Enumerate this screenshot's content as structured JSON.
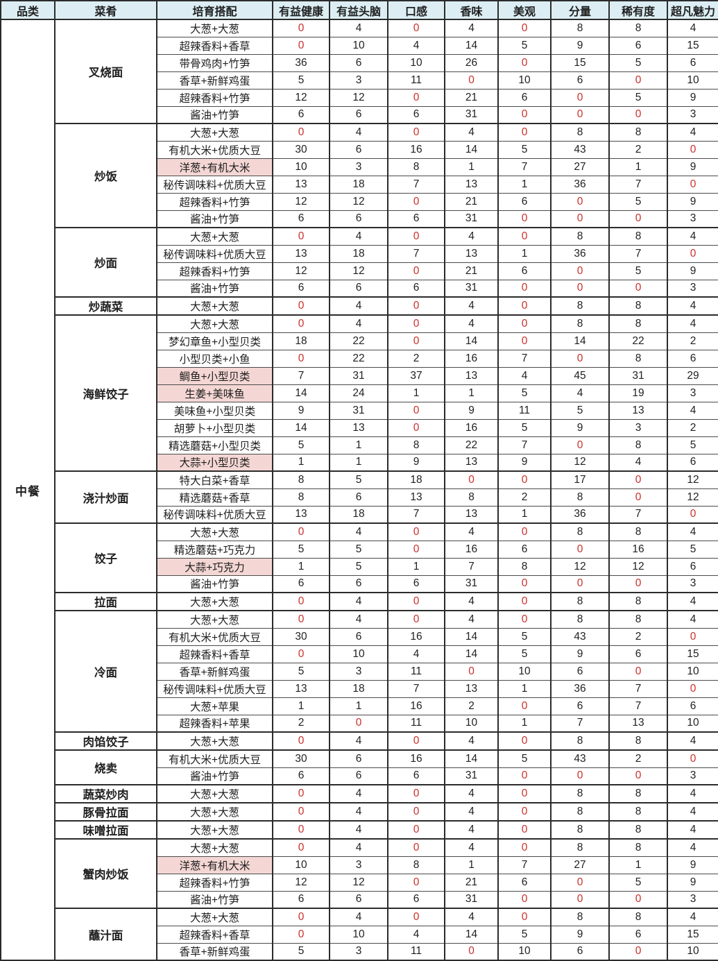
{
  "colors": {
    "header_bg": "#dceef4",
    "highlight_bg": "#f4d7d4",
    "zero_value_color": "#c9302c"
  },
  "table": {
    "columns": [
      "品类",
      "菜肴",
      "培育搭配",
      "有益健康",
      "有益头脑",
      "口感",
      "香味",
      "美观",
      "分量",
      "稀有度",
      "超凡魅力"
    ],
    "category": "中餐",
    "dishes": [
      {
        "name": "叉烧面",
        "rows": [
          {
            "pair": "大葱+大葱",
            "highlight": false,
            "values": [
              0,
              4,
              0,
              4,
              0,
              8,
              8,
              4
            ]
          },
          {
            "pair": "超辣香料+香草",
            "highlight": false,
            "values": [
              0,
              10,
              4,
              14,
              5,
              9,
              6,
              15
            ]
          },
          {
            "pair": "带骨鸡肉+竹笋",
            "highlight": false,
            "values": [
              36,
              6,
              10,
              26,
              0,
              15,
              5,
              6
            ]
          },
          {
            "pair": "香草+新鲜鸡蛋",
            "highlight": false,
            "values": [
              5,
              3,
              11,
              0,
              10,
              6,
              0,
              10
            ]
          },
          {
            "pair": "超辣香料+竹笋",
            "highlight": false,
            "values": [
              12,
              12,
              0,
              21,
              6,
              0,
              5,
              9
            ]
          },
          {
            "pair": "酱油+竹笋",
            "highlight": false,
            "values": [
              6,
              6,
              6,
              31,
              0,
              0,
              0,
              3
            ]
          }
        ]
      },
      {
        "name": "炒饭",
        "rows": [
          {
            "pair": "大葱+大葱",
            "highlight": false,
            "values": [
              0,
              4,
              0,
              4,
              0,
              8,
              8,
              4
            ]
          },
          {
            "pair": "有机大米+优质大豆",
            "highlight": false,
            "values": [
              30,
              6,
              16,
              14,
              5,
              43,
              2,
              0
            ]
          },
          {
            "pair": "洋葱+有机大米",
            "highlight": true,
            "values": [
              10,
              3,
              8,
              1,
              7,
              27,
              1,
              9
            ]
          },
          {
            "pair": "秘传调味料+优质大豆",
            "highlight": false,
            "values": [
              13,
              18,
              7,
              13,
              1,
              36,
              7,
              0
            ]
          },
          {
            "pair": "超辣香料+竹笋",
            "highlight": false,
            "values": [
              12,
              12,
              0,
              21,
              6,
              0,
              5,
              9
            ]
          },
          {
            "pair": "酱油+竹笋",
            "highlight": false,
            "values": [
              6,
              6,
              6,
              31,
              0,
              0,
              0,
              3
            ]
          }
        ]
      },
      {
        "name": "炒面",
        "rows": [
          {
            "pair": "大葱+大葱",
            "highlight": false,
            "values": [
              0,
              4,
              0,
              4,
              0,
              8,
              8,
              4
            ]
          },
          {
            "pair": "秘传调味料+优质大豆",
            "highlight": false,
            "values": [
              13,
              18,
              7,
              13,
              1,
              36,
              7,
              0
            ]
          },
          {
            "pair": "超辣香料+竹笋",
            "highlight": false,
            "values": [
              12,
              12,
              0,
              21,
              6,
              0,
              5,
              9
            ]
          },
          {
            "pair": "酱油+竹笋",
            "highlight": false,
            "values": [
              6,
              6,
              6,
              31,
              0,
              0,
              0,
              3
            ]
          }
        ]
      },
      {
        "name": "炒蔬菜",
        "rows": [
          {
            "pair": "大葱+大葱",
            "highlight": false,
            "values": [
              0,
              4,
              0,
              4,
              0,
              8,
              8,
              4
            ]
          }
        ]
      },
      {
        "name": "海鲜饺子",
        "rows": [
          {
            "pair": "大葱+大葱",
            "highlight": false,
            "values": [
              0,
              4,
              0,
              4,
              0,
              8,
              8,
              4
            ]
          },
          {
            "pair": "梦幻章鱼+小型贝类",
            "highlight": false,
            "values": [
              18,
              22,
              0,
              14,
              0,
              14,
              22,
              2
            ]
          },
          {
            "pair": "小型贝类+小鱼",
            "highlight": false,
            "values": [
              0,
              22,
              2,
              16,
              7,
              0,
              8,
              6
            ]
          },
          {
            "pair": "鲷鱼+小型贝类",
            "highlight": true,
            "values": [
              7,
              31,
              37,
              13,
              4,
              45,
              31,
              29
            ]
          },
          {
            "pair": "生姜+美味鱼",
            "highlight": true,
            "values": [
              14,
              24,
              1,
              1,
              5,
              4,
              19,
              3
            ]
          },
          {
            "pair": "美味鱼+小型贝类",
            "highlight": false,
            "values": [
              9,
              31,
              0,
              9,
              11,
              5,
              13,
              4
            ]
          },
          {
            "pair": "胡萝卜+小型贝类",
            "highlight": false,
            "values": [
              14,
              13,
              0,
              16,
              5,
              9,
              3,
              2
            ]
          },
          {
            "pair": "精选蘑菇+小型贝类",
            "highlight": false,
            "values": [
              5,
              1,
              8,
              22,
              7,
              0,
              8,
              5
            ]
          },
          {
            "pair": "大蒜+小型贝类",
            "highlight": true,
            "values": [
              1,
              1,
              9,
              13,
              9,
              12,
              4,
              6
            ]
          }
        ]
      },
      {
        "name": "浇汁炒面",
        "rows": [
          {
            "pair": "特大白菜+香草",
            "highlight": false,
            "values": [
              8,
              5,
              18,
              0,
              0,
              17,
              0,
              12
            ]
          },
          {
            "pair": "精选蘑菇+香草",
            "highlight": false,
            "values": [
              8,
              6,
              13,
              8,
              2,
              8,
              0,
              12
            ]
          },
          {
            "pair": "秘传调味料+优质大豆",
            "highlight": false,
            "values": [
              13,
              18,
              7,
              13,
              1,
              36,
              7,
              0
            ]
          }
        ]
      },
      {
        "name": "饺子",
        "rows": [
          {
            "pair": "大葱+大葱",
            "highlight": false,
            "values": [
              0,
              4,
              0,
              4,
              0,
              8,
              8,
              4
            ]
          },
          {
            "pair": "精选蘑菇+巧克力",
            "highlight": false,
            "values": [
              5,
              5,
              0,
              16,
              6,
              0,
              16,
              5
            ]
          },
          {
            "pair": "大蒜+巧克力",
            "highlight": true,
            "values": [
              1,
              5,
              1,
              7,
              8,
              12,
              12,
              6
            ]
          },
          {
            "pair": "酱油+竹笋",
            "highlight": false,
            "values": [
              6,
              6,
              6,
              31,
              0,
              0,
              0,
              3
            ]
          }
        ]
      },
      {
        "name": "拉面",
        "rows": [
          {
            "pair": "大葱+大葱",
            "highlight": false,
            "values": [
              0,
              4,
              0,
              4,
              0,
              8,
              8,
              4
            ]
          }
        ]
      },
      {
        "name": "冷面",
        "rows": [
          {
            "pair": "大葱+大葱",
            "highlight": false,
            "values": [
              0,
              4,
              0,
              4,
              0,
              8,
              8,
              4
            ]
          },
          {
            "pair": "有机大米+优质大豆",
            "highlight": false,
            "values": [
              30,
              6,
              16,
              14,
              5,
              43,
              2,
              0
            ]
          },
          {
            "pair": "超辣香料+香草",
            "highlight": false,
            "values": [
              0,
              10,
              4,
              14,
              5,
              9,
              6,
              15
            ]
          },
          {
            "pair": "香草+新鲜鸡蛋",
            "highlight": false,
            "values": [
              5,
              3,
              11,
              0,
              10,
              6,
              0,
              10
            ]
          },
          {
            "pair": "秘传调味料+优质大豆",
            "highlight": false,
            "values": [
              13,
              18,
              7,
              13,
              1,
              36,
              7,
              0
            ]
          },
          {
            "pair": "大葱+苹果",
            "highlight": false,
            "values": [
              1,
              1,
              16,
              2,
              0,
              6,
              7,
              6
            ]
          },
          {
            "pair": "超辣香料+苹果",
            "highlight": false,
            "values": [
              2,
              0,
              11,
              10,
              1,
              7,
              13,
              10
            ]
          }
        ]
      },
      {
        "name": "肉馅饺子",
        "rows": [
          {
            "pair": "大葱+大葱",
            "highlight": false,
            "values": [
              0,
              4,
              0,
              4,
              0,
              8,
              8,
              4
            ]
          }
        ]
      },
      {
        "name": "烧卖",
        "rows": [
          {
            "pair": "有机大米+优质大豆",
            "highlight": false,
            "values": [
              30,
              6,
              16,
              14,
              5,
              43,
              2,
              0
            ]
          },
          {
            "pair": "酱油+竹笋",
            "highlight": false,
            "values": [
              6,
              6,
              6,
              31,
              0,
              0,
              0,
              3
            ]
          }
        ]
      },
      {
        "name": "蔬菜炒肉",
        "rows": [
          {
            "pair": "大葱+大葱",
            "highlight": false,
            "values": [
              0,
              4,
              0,
              4,
              0,
              8,
              8,
              4
            ]
          }
        ]
      },
      {
        "name": "豚骨拉面",
        "rows": [
          {
            "pair": "大葱+大葱",
            "highlight": false,
            "values": [
              0,
              4,
              0,
              4,
              0,
              8,
              8,
              4
            ]
          }
        ]
      },
      {
        "name": "味噌拉面",
        "rows": [
          {
            "pair": "大葱+大葱",
            "highlight": false,
            "values": [
              0,
              4,
              0,
              4,
              0,
              8,
              8,
              4
            ]
          }
        ]
      },
      {
        "name": "蟹肉炒饭",
        "rows": [
          {
            "pair": "大葱+大葱",
            "highlight": false,
            "values": [
              0,
              4,
              0,
              4,
              0,
              8,
              8,
              4
            ]
          },
          {
            "pair": "洋葱+有机大米",
            "highlight": true,
            "values": [
              10,
              3,
              8,
              1,
              7,
              27,
              1,
              9
            ]
          },
          {
            "pair": "超辣香料+竹笋",
            "highlight": false,
            "values": [
              12,
              12,
              0,
              21,
              6,
              0,
              5,
              9
            ]
          },
          {
            "pair": "酱油+竹笋",
            "highlight": false,
            "values": [
              6,
              6,
              6,
              31,
              0,
              0,
              0,
              3
            ]
          }
        ]
      },
      {
        "name": "蘸汁面",
        "rows": [
          {
            "pair": "大葱+大葱",
            "highlight": false,
            "values": [
              0,
              4,
              0,
              4,
              0,
              8,
              8,
              4
            ]
          },
          {
            "pair": "超辣香料+香草",
            "highlight": false,
            "values": [
              0,
              10,
              4,
              14,
              5,
              9,
              6,
              15
            ]
          },
          {
            "pair": "香草+新鲜鸡蛋",
            "highlight": false,
            "values": [
              5,
              3,
              11,
              0,
              10,
              6,
              0,
              10
            ]
          }
        ]
      }
    ]
  }
}
